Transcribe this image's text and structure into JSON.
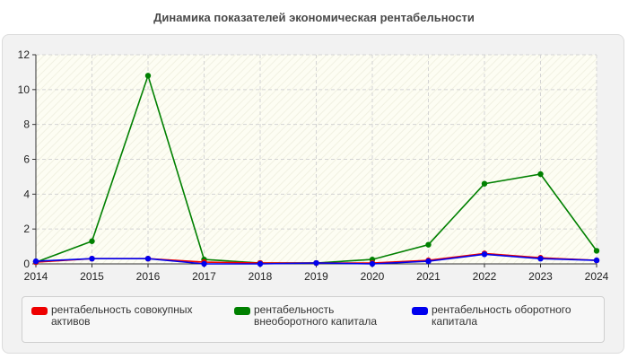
{
  "title": "Динамика показателей экономическая рентабельности",
  "chart_data": {
    "type": "line",
    "x": [
      2014,
      2015,
      2016,
      2017,
      2018,
      2019,
      2020,
      2021,
      2022,
      2023,
      2024
    ],
    "xlim": [
      2014,
      2024
    ],
    "ylim": [
      0,
      12
    ],
    "yticks": [
      0,
      2,
      4,
      6,
      8,
      10,
      12
    ],
    "grid": true,
    "legend_position": "bottom",
    "series": [
      {
        "name": "рентабельность совокупных активов",
        "color": "#ee0000",
        "values": [
          0.1,
          0.3,
          0.3,
          0.1,
          0.05,
          0.05,
          0.05,
          0.2,
          0.6,
          0.35,
          0.2
        ]
      },
      {
        "name": "рентабельность внеоборотного капитала",
        "color": "#008000",
        "values": [
          0.1,
          1.3,
          10.8,
          0.25,
          0.05,
          0.05,
          0.25,
          1.1,
          4.6,
          5.15,
          0.75
        ]
      },
      {
        "name": "рентабельность оборотного капитала",
        "color": "#0000ee",
        "values": [
          0.15,
          0.3,
          0.3,
          0.0,
          0.0,
          0.05,
          0.0,
          0.15,
          0.55,
          0.3,
          0.2
        ]
      }
    ]
  }
}
